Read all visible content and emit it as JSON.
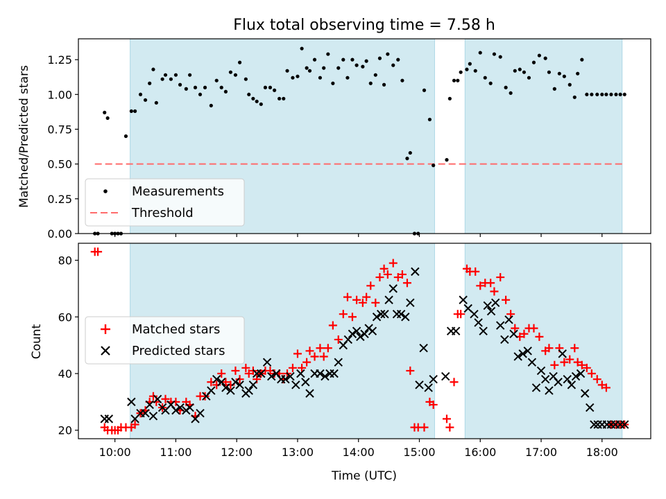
{
  "chart_data": [
    {
      "type": "scatter",
      "panel": "top",
      "title": "Flux total observing time = 7.58 h",
      "xlabel": "",
      "ylabel": "Matched/Predicted stars",
      "xlim": [
        9.4,
        18.8
      ],
      "ylim": [
        0.0,
        1.4
      ],
      "yticks": [
        0.0,
        0.25,
        0.5,
        0.75,
        1.0,
        1.25
      ],
      "ytick_labels": [
        "0.00",
        "0.25",
        "0.50",
        "0.75",
        "1.00",
        "1.25"
      ],
      "shaded_intervals": [
        [
          10.25,
          15.25
        ],
        [
          15.75,
          18.33
        ]
      ],
      "shade_color": "#add8e6",
      "legend_position": "lower-left",
      "threshold": {
        "name": "Threshold",
        "y": 0.5,
        "x_range": [
          9.67,
          18.33
        ],
        "color": "#ff6b6b",
        "style": "dashed"
      },
      "series": [
        {
          "name": "Measurements",
          "marker": "dot",
          "color": "#000000",
          "x": [
            9.67,
            9.72,
            9.83,
            9.88,
            9.95,
            10.0,
            10.05,
            10.1,
            10.18,
            10.27,
            10.33,
            10.42,
            10.5,
            10.57,
            10.63,
            10.68,
            10.78,
            10.83,
            10.92,
            11.0,
            11.07,
            11.17,
            11.23,
            11.32,
            11.4,
            11.48,
            11.58,
            11.67,
            11.75,
            11.82,
            11.9,
            11.98,
            12.05,
            12.15,
            12.2,
            12.27,
            12.33,
            12.4,
            12.47,
            12.55,
            12.62,
            12.7,
            12.77,
            12.83,
            12.92,
            13.0,
            13.07,
            13.15,
            13.2,
            13.28,
            13.37,
            13.43,
            13.5,
            13.58,
            13.67,
            13.75,
            13.82,
            13.9,
            13.97,
            14.07,
            14.13,
            14.2,
            14.28,
            14.35,
            14.42,
            14.48,
            14.57,
            14.65,
            14.72,
            14.8,
            14.85,
            14.92,
            14.98,
            15.08,
            15.17,
            15.23,
            15.45,
            15.5,
            15.57,
            15.63,
            15.68,
            15.78,
            15.83,
            15.92,
            16.0,
            16.08,
            16.17,
            16.23,
            16.33,
            16.42,
            16.5,
            16.57,
            16.65,
            16.72,
            16.8,
            16.88,
            16.97,
            17.07,
            17.13,
            17.22,
            17.3,
            17.38,
            17.47,
            17.55,
            17.6,
            17.67,
            17.75,
            17.83,
            17.92,
            18.0,
            18.07,
            18.15,
            18.23,
            18.3,
            18.37
          ],
          "y": [
            0.0,
            0.0,
            0.87,
            0.83,
            0.0,
            0.0,
            0.0,
            0.0,
            0.7,
            0.88,
            0.88,
            1.0,
            0.96,
            1.08,
            1.18,
            0.94,
            1.11,
            1.14,
            1.11,
            1.14,
            1.07,
            1.04,
            1.14,
            1.05,
            1.0,
            1.05,
            0.92,
            1.1,
            1.05,
            1.02,
            1.16,
            1.14,
            1.23,
            1.11,
            1.0,
            0.97,
            0.95,
            0.93,
            1.05,
            1.05,
            1.03,
            0.97,
            0.97,
            1.17,
            1.12,
            1.13,
            1.33,
            1.19,
            1.17,
            1.25,
            1.12,
            1.19,
            1.29,
            1.08,
            1.19,
            1.25,
            1.12,
            1.25,
            1.21,
            1.2,
            1.24,
            1.08,
            1.14,
            1.26,
            1.07,
            1.29,
            1.21,
            1.25,
            1.1,
            0.54,
            0.58,
            0.0,
            0.0,
            1.03,
            0.82,
            0.49,
            0.53,
            0.97,
            1.1,
            1.1,
            1.16,
            1.18,
            1.22,
            1.17,
            1.3,
            1.12,
            1.08,
            1.29,
            1.27,
            1.05,
            1.01,
            1.17,
            1.18,
            1.16,
            1.12,
            1.23,
            1.28,
            1.26,
            1.16,
            1.04,
            1.15,
            1.13,
            1.07,
            0.98,
            1.15,
            1.25,
            1.0,
            1.0,
            1.0,
            1.0,
            1.0,
            1.0,
            1.0,
            1.0,
            1.0
          ]
        }
      ]
    },
    {
      "type": "scatter",
      "panel": "bottom",
      "title": "",
      "xlabel": "Time (UTC)",
      "ylabel": "Count",
      "xlim": [
        9.4,
        18.8
      ],
      "ylim": [
        17.0,
        86.0
      ],
      "yticks": [
        20,
        40,
        60,
        80
      ],
      "ytick_labels": [
        "20",
        "40",
        "60",
        "80"
      ],
      "xticks": [
        10,
        11,
        12,
        13,
        14,
        15,
        16,
        17,
        18
      ],
      "xtick_labels": [
        "10:00",
        "11:00",
        "12:00",
        "13:00",
        "14:00",
        "15:00",
        "16:00",
        "17:00",
        "18:00"
      ],
      "shaded_intervals": [
        [
          10.25,
          15.25
        ],
        [
          15.75,
          18.33
        ]
      ],
      "shade_color": "#add8e6",
      "legend_position": "center-left",
      "series": [
        {
          "name": "Matched stars",
          "marker": "plus",
          "color": "#ff0000",
          "x": [
            9.67,
            9.72,
            9.83,
            9.88,
            9.95,
            10.0,
            10.05,
            10.1,
            10.18,
            10.27,
            10.33,
            10.42,
            10.5,
            10.57,
            10.63,
            10.68,
            10.78,
            10.83,
            10.92,
            11.0,
            11.07,
            11.17,
            11.23,
            11.32,
            11.4,
            11.48,
            11.58,
            11.67,
            11.75,
            11.82,
            11.9,
            11.98,
            12.05,
            12.15,
            12.2,
            12.27,
            12.33,
            12.4,
            12.47,
            12.55,
            12.62,
            12.7,
            12.77,
            12.83,
            12.92,
            13.0,
            13.07,
            13.15,
            13.2,
            13.28,
            13.37,
            13.43,
            13.5,
            13.58,
            13.67,
            13.75,
            13.82,
            13.9,
            13.97,
            14.07,
            14.13,
            14.2,
            14.28,
            14.35,
            14.42,
            14.48,
            14.57,
            14.65,
            14.72,
            14.8,
            14.85,
            14.92,
            14.98,
            15.08,
            15.17,
            15.23,
            15.45,
            15.5,
            15.57,
            15.63,
            15.68,
            15.78,
            15.83,
            15.92,
            16.0,
            16.08,
            16.17,
            16.23,
            16.33,
            16.42,
            16.5,
            16.57,
            16.65,
            16.72,
            16.8,
            16.88,
            16.97,
            17.07,
            17.13,
            17.22,
            17.3,
            17.38,
            17.47,
            17.55,
            17.6,
            17.67,
            17.75,
            17.83,
            17.92,
            18.0,
            18.07,
            18.15,
            18.23,
            18.3,
            18.37
          ],
          "y": [
            83,
            83,
            21,
            20,
            20,
            20,
            20,
            21,
            21,
            21,
            22,
            26,
            27,
            30,
            32,
            30,
            28,
            31,
            30,
            30,
            27,
            30,
            29,
            25,
            32,
            32,
            37,
            36,
            40,
            37,
            36,
            41,
            38,
            42,
            40,
            41,
            38,
            40,
            41,
            41,
            40,
            40,
            38,
            40,
            42,
            47,
            42,
            44,
            48,
            46,
            49,
            46,
            49,
            57,
            52,
            61,
            67,
            60,
            66,
            65,
            67,
            71,
            65,
            74,
            77,
            75,
            79,
            74,
            75,
            72,
            41,
            21,
            21,
            21,
            30,
            29,
            24,
            21,
            37,
            61,
            61,
            77,
            76,
            76,
            71,
            72,
            72,
            69,
            74,
            66,
            61,
            56,
            53,
            54,
            56,
            56,
            53,
            48,
            49,
            43,
            49,
            44,
            45,
            49,
            44,
            43,
            42,
            40,
            38,
            36,
            35,
            22,
            22,
            22,
            22
          ],
          "y_note": "values read from plot"
        },
        {
          "name": "Predicted stars",
          "marker": "x",
          "color": "#000000",
          "x": [
            9.83,
            9.9,
            10.27,
            10.33,
            10.42,
            10.5,
            10.57,
            10.63,
            10.7,
            10.78,
            10.83,
            10.92,
            11.0,
            11.07,
            11.17,
            11.23,
            11.32,
            11.4,
            11.5,
            11.58,
            11.67,
            11.75,
            11.82,
            11.9,
            11.98,
            12.05,
            12.15,
            12.2,
            12.27,
            12.33,
            12.4,
            12.5,
            12.57,
            12.65,
            12.73,
            12.8,
            12.88,
            12.97,
            13.05,
            13.13,
            13.2,
            13.28,
            13.37,
            13.45,
            13.53,
            13.6,
            13.67,
            13.75,
            13.83,
            13.9,
            13.97,
            14.03,
            14.1,
            14.17,
            14.23,
            14.3,
            14.37,
            14.43,
            14.5,
            14.57,
            14.63,
            14.7,
            14.77,
            14.85,
            14.93,
            15.0,
            15.07,
            15.15,
            15.23,
            15.43,
            15.52,
            15.6,
            15.72,
            15.8,
            15.9,
            15.97,
            16.05,
            16.12,
            16.18,
            16.25,
            16.33,
            16.4,
            16.47,
            16.55,
            16.62,
            16.7,
            16.78,
            16.85,
            16.92,
            17.0,
            17.07,
            17.13,
            17.2,
            17.28,
            17.35,
            17.43,
            17.5,
            17.57,
            17.65,
            17.72,
            17.8,
            17.87,
            17.93,
            18.0,
            18.08,
            18.15,
            18.22,
            18.3,
            18.37
          ],
          "y": [
            24,
            24,
            30,
            24,
            26,
            26,
            29,
            25,
            31,
            28,
            27,
            29,
            27,
            28,
            27,
            28,
            24,
            26,
            32,
            34,
            38,
            37,
            35,
            34,
            37,
            36,
            33,
            34,
            36,
            40,
            40,
            44,
            39,
            40,
            38,
            38,
            39,
            36,
            40,
            37,
            33,
            40,
            40,
            39,
            40,
            40,
            44,
            50,
            52,
            54,
            55,
            53,
            54,
            56,
            55,
            60,
            61,
            61,
            66,
            70,
            61,
            61,
            60,
            65,
            76,
            36,
            49,
            35,
            38,
            39,
            55,
            55,
            66,
            63,
            61,
            58,
            55,
            64,
            62,
            65,
            57,
            52,
            59,
            54,
            46,
            47,
            48,
            44,
            35,
            41,
            38,
            34,
            39,
            37,
            47,
            38,
            36,
            39,
            40,
            33,
            28,
            22,
            22,
            22,
            22,
            22,
            22,
            22,
            22
          ]
        }
      ]
    }
  ]
}
